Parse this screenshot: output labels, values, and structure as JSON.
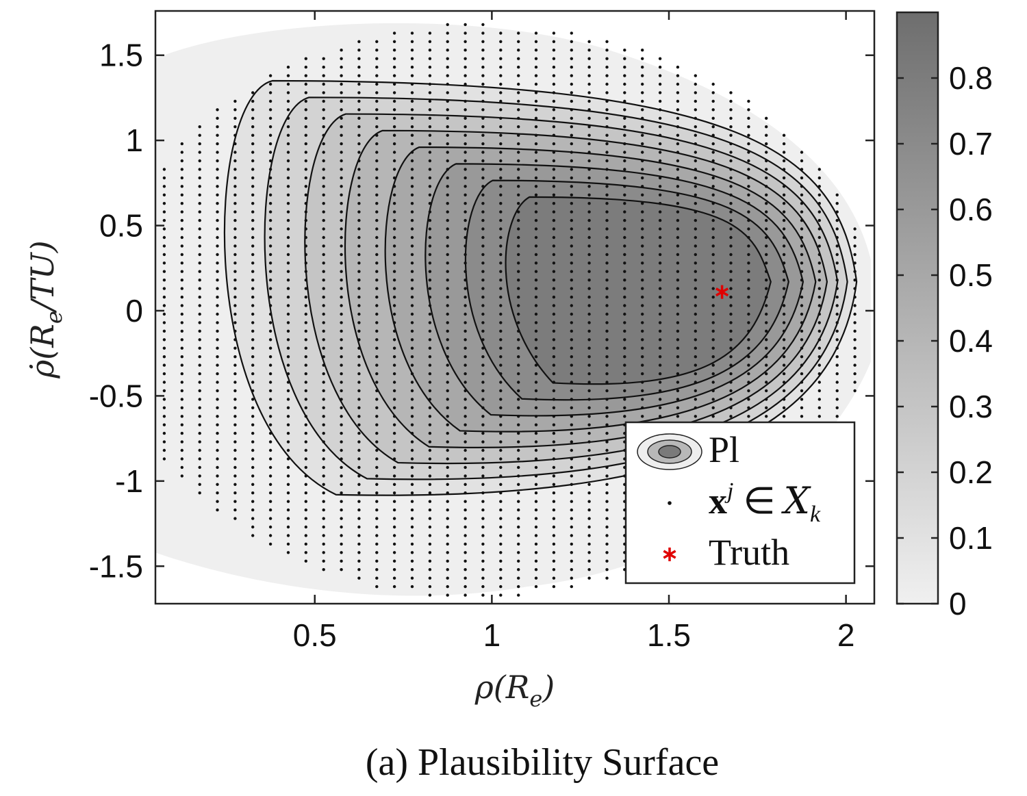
{
  "chart_data": {
    "type": "contour",
    "title": "",
    "caption": "(a) Plausibility Surface",
    "xlabel": "ρ(R",
    "xlabel_sub": "e",
    "xlabel_close": ")",
    "ylabel": "ρ̇(R",
    "ylabel_sub": "e",
    "ylabel_rest": "/TU)",
    "xlim": [
      0.05,
      2.08
    ],
    "ylim": [
      -1.72,
      1.76
    ],
    "xticks": [
      0.5,
      1,
      1.5,
      2
    ],
    "xtick_labels": [
      "0.5",
      "1",
      "1.5",
      "2"
    ],
    "yticks": [
      1.5,
      1,
      0.5,
      0,
      -0.5,
      -1,
      -1.5
    ],
    "ytick_labels": [
      "1.5",
      "1",
      "0.5",
      "0",
      "-0.5",
      "-1",
      "-1.5"
    ],
    "colorbar": {
      "range": [
        0,
        0.9
      ],
      "ticks": [
        0,
        0.1,
        0.2,
        0.3,
        0.4,
        0.5,
        0.6,
        0.7,
        0.8
      ],
      "tick_labels": [
        "0",
        "0.1",
        "0.2",
        "0.3",
        "0.4",
        "0.5",
        "0.6",
        "0.7",
        "0.8"
      ],
      "colormap": "gray",
      "color_low": "#f0f0f0",
      "color_high": "#6e6e6e"
    },
    "peak": {
      "x": 1.61,
      "y": 0.12,
      "value": 0.85
    },
    "contour_levels": [
      0.1,
      0.2,
      0.3,
      0.4,
      0.5,
      0.6,
      0.7,
      0.8
    ],
    "support_region": {
      "x_range": [
        0.05,
        2.07
      ],
      "y_range": [
        -1.72,
        1.72
      ]
    },
    "sample_grid": {
      "x_step": 0.05,
      "y_step": 0.05,
      "marker": "dot"
    },
    "truth": {
      "x": 1.65,
      "y": 0.11,
      "marker": "*",
      "color": "#e00000"
    },
    "legend": {
      "position": "lower-right",
      "entries": [
        {
          "name": "Pl",
          "kind": "filled-contour"
        },
        {
          "name": "x",
          "superscript": "j",
          "relation": "∈",
          "set": "X",
          "set_sub": "k",
          "kind": "dot"
        },
        {
          "name": "Truth",
          "kind": "red-star"
        }
      ]
    }
  }
}
